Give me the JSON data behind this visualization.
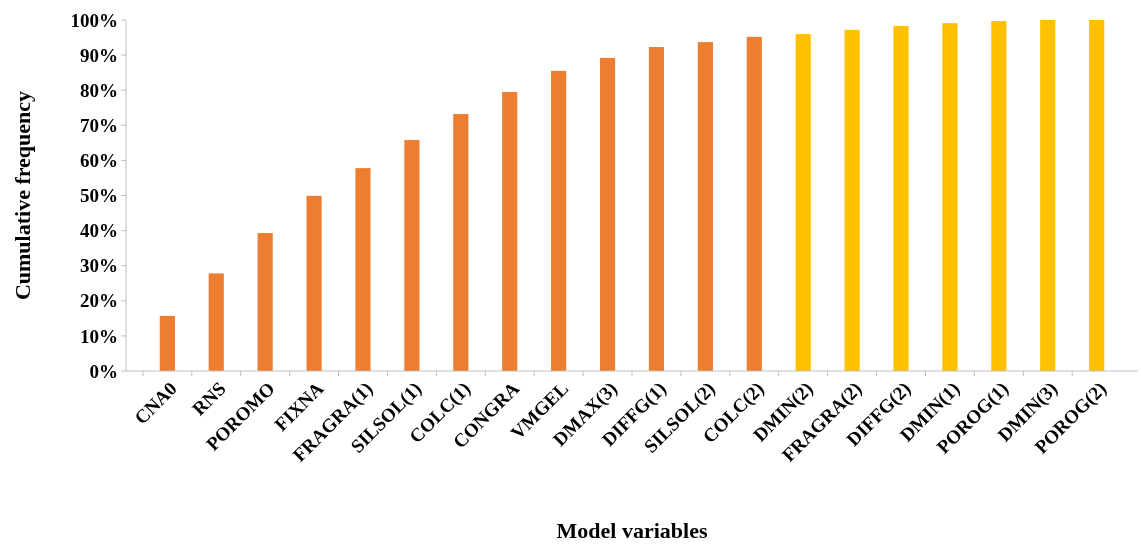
{
  "chart_data": {
    "type": "bar",
    "xlabel": "Model variables",
    "ylabel": "Cumulative frequency",
    "categories": [
      "CNA0",
      "RNS",
      "POROMO",
      "FIXNA",
      "FRAGRA(1)",
      "SILSOL(1)",
      "COLC(1)",
      "CONGRA",
      "VMGEL",
      "DMAX(3)",
      "DIFFG(1)",
      "SILSOL(2)",
      "COLC(2)",
      "DMIN(2)",
      "FRAGRA(2)",
      "DIFFG(2)",
      "DMIN(1)",
      "POROG(1)",
      "DMIN(3)",
      "POROG(2)"
    ],
    "values": [
      15.7,
      27.8,
      39.3,
      49.9,
      57.8,
      65.8,
      73.2,
      79.5,
      85.5,
      89.2,
      92.3,
      93.7,
      95.2,
      96,
      97.2,
      98.3,
      99.1,
      99.7,
      100,
      100
    ],
    "colors": [
      "#ed7d31",
      "#ed7d31",
      "#ed7d31",
      "#ed7d31",
      "#ed7d31",
      "#ed7d31",
      "#ed7d31",
      "#ed7d31",
      "#ed7d31",
      "#ed7d31",
      "#ed7d31",
      "#ed7d31",
      "#ed7d31",
      "#ffc000",
      "#ffc000",
      "#ffc000",
      "#ffc000",
      "#ffc000",
      "#ffc000",
      "#ffc000"
    ],
    "ylim": [
      0,
      100
    ],
    "yticks": [
      {
        "value": 0,
        "label": "0%"
      },
      {
        "value": 10,
        "label": "10%"
      },
      {
        "value": 20,
        "label": "20%"
      },
      {
        "value": 30,
        "label": "30%"
      },
      {
        "value": 40,
        "label": "40%"
      },
      {
        "value": 50,
        "label": "50%"
      },
      {
        "value": 60,
        "label": "60%"
      },
      {
        "value": 70,
        "label": "70%"
      },
      {
        "value": 80,
        "label": "80%"
      },
      {
        "value": 90,
        "label": "90%"
      },
      {
        "value": 100,
        "label": "100%"
      }
    ],
    "grid": false
  }
}
